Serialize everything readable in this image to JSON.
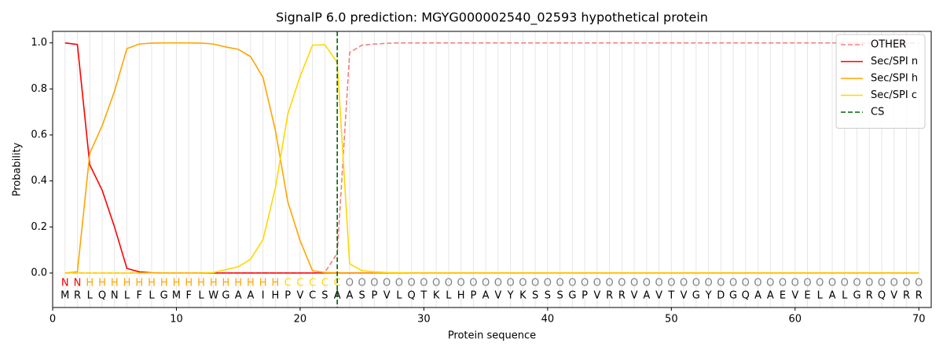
{
  "chart_data": {
    "type": "line",
    "title": "SignalP 6.0 prediction: MGYG000002540_02593 hypothetical protein",
    "xlabel": "Protein sequence",
    "ylabel": "Probability",
    "xlim": [
      0,
      71
    ],
    "ylim": [
      -0.15,
      1.05
    ],
    "xticks": [
      0,
      10,
      20,
      30,
      40,
      50,
      60,
      70
    ],
    "yticks": [
      {
        "value": 0,
        "label": "0.0"
      },
      {
        "value": 0.2,
        "label": "0.2"
      },
      {
        "value": 0.4,
        "label": "0.4"
      },
      {
        "value": 0.6,
        "label": "0.6"
      },
      {
        "value": 0.8,
        "label": "0.8"
      },
      {
        "value": 1,
        "label": "1.0"
      }
    ],
    "grid": true,
    "legend": "upper right",
    "x": [
      1,
      2,
      3,
      4,
      5,
      6,
      7,
      8,
      9,
      10,
      11,
      12,
      13,
      14,
      15,
      16,
      17,
      18,
      19,
      20,
      21,
      22,
      23,
      24,
      25,
      26,
      27,
      28,
      29,
      30,
      31,
      32,
      33,
      34,
      35,
      36,
      37,
      38,
      39,
      40,
      41,
      42,
      43,
      44,
      45,
      46,
      47,
      48,
      49,
      50,
      51,
      52,
      53,
      54,
      55,
      56,
      57,
      58,
      59,
      60,
      61,
      62,
      63,
      64,
      65,
      66,
      67,
      68,
      69,
      70
    ],
    "sequence": [
      "M",
      "R",
      "L",
      "Q",
      "N",
      "L",
      "F",
      "L",
      "G",
      "M",
      "F",
      "L",
      "W",
      "G",
      "A",
      "A",
      "I",
      "H",
      "P",
      "V",
      "C",
      "S",
      "A",
      "A",
      "S",
      "P",
      "V",
      "L",
      "Q",
      "T",
      "K",
      "L",
      "H",
      "P",
      "A",
      "V",
      "Y",
      "K",
      "S",
      "S",
      "S",
      "G",
      "P",
      "V",
      "R",
      "R",
      "V",
      "A",
      "V",
      "T",
      "V",
      "G",
      "Y",
      "D",
      "G",
      "Q",
      "A",
      "A",
      "E",
      "V",
      "E",
      "L",
      "A",
      "L",
      "G",
      "R",
      "Q",
      "V",
      "R",
      "R"
    ],
    "residue_labels": [
      "N",
      "N",
      "H",
      "H",
      "H",
      "H",
      "H",
      "H",
      "H",
      "H",
      "H",
      "H",
      "H",
      "H",
      "H",
      "H",
      "H",
      "H",
      "C",
      "C",
      "C",
      "C",
      "C",
      "O",
      "O",
      "O",
      "O",
      "O",
      "O",
      "O",
      "O",
      "O",
      "O",
      "O",
      "O",
      "O",
      "O",
      "O",
      "O",
      "O",
      "O",
      "O",
      "O",
      "O",
      "O",
      "O",
      "O",
      "O",
      "O",
      "O",
      "O",
      "O",
      "O",
      "O",
      "O",
      "O",
      "O",
      "O",
      "O",
      "O",
      "O",
      "O",
      "O",
      "O",
      "O",
      "O",
      "O",
      "O",
      "O",
      "O"
    ],
    "label_colors": {
      "N": "#ff0000",
      "H": "#ffa500",
      "C": "#ffd700",
      "O": "#808080"
    },
    "series": [
      {
        "name": "OTHER",
        "color": "#f08080",
        "dash": true,
        "values": [
          0,
          0,
          0,
          0,
          0,
          0,
          0,
          0,
          0,
          0,
          0,
          0,
          0,
          0,
          0,
          0,
          0,
          0,
          0,
          0,
          0,
          0.003,
          0.085,
          0.958,
          0.99,
          0.995,
          0.998,
          1,
          1,
          1,
          1,
          1,
          1,
          1,
          1,
          1,
          1,
          1,
          1,
          1,
          1,
          1,
          1,
          1,
          1,
          1,
          1,
          1,
          1,
          1,
          1,
          1,
          1,
          1,
          1,
          1,
          1,
          1,
          1,
          1,
          1,
          1,
          1,
          1,
          1,
          1,
          1,
          1,
          1,
          1
        ]
      },
      {
        "name": "Sec/SPI n",
        "color": "#ff0000",
        "dash": false,
        "values": [
          1.0,
          0.993,
          0.47,
          0.36,
          0.2,
          0.02,
          0.005,
          0.001,
          0,
          0,
          0,
          0,
          0,
          0,
          0,
          0,
          0,
          0,
          0,
          0,
          0,
          0,
          0,
          0,
          0,
          0,
          0,
          0,
          0,
          0,
          0,
          0,
          0,
          0,
          0,
          0,
          0,
          0,
          0,
          0,
          0,
          0,
          0,
          0,
          0,
          0,
          0,
          0,
          0,
          0,
          0,
          0,
          0,
          0,
          0,
          0,
          0,
          0,
          0,
          0,
          0,
          0,
          0,
          0,
          0,
          0,
          0,
          0,
          0,
          0
        ]
      },
      {
        "name": "Sec/SPI h",
        "color": "#ffa500",
        "dash": false,
        "values": [
          0,
          0.005,
          0.52,
          0.64,
          0.79,
          0.975,
          0.995,
          0.999,
          1,
          1,
          1,
          0.999,
          0.995,
          0.982,
          0.972,
          0.94,
          0.85,
          0.62,
          0.31,
          0.14,
          0.01,
          0.002,
          0.001,
          0,
          0,
          0,
          0,
          0,
          0,
          0,
          0,
          0,
          0,
          0,
          0,
          0,
          0,
          0,
          0,
          0,
          0,
          0,
          0,
          0,
          0,
          0,
          0,
          0,
          0,
          0,
          0,
          0,
          0,
          0,
          0,
          0,
          0,
          0,
          0,
          0,
          0,
          0,
          0,
          0,
          0,
          0,
          0,
          0,
          0,
          0
        ]
      },
      {
        "name": "Sec/SPI c",
        "color": "#ffd700",
        "dash": false,
        "values": [
          0,
          0,
          0,
          0,
          0,
          0,
          0,
          0,
          0,
          0,
          0,
          0,
          0.002,
          0.015,
          0.027,
          0.06,
          0.145,
          0.37,
          0.69,
          0.855,
          0.99,
          0.992,
          0.915,
          0.04,
          0.01,
          0.005,
          0.002,
          0.001,
          0,
          0,
          0,
          0,
          0,
          0,
          0,
          0,
          0,
          0,
          0,
          0,
          0,
          0,
          0,
          0,
          0,
          0,
          0,
          0,
          0,
          0,
          0,
          0,
          0,
          0,
          0,
          0,
          0,
          0,
          0,
          0,
          0,
          0,
          0,
          0,
          0,
          0,
          0,
          0,
          0,
          0
        ]
      }
    ],
    "cleavage_site": {
      "name": "CS",
      "x": 23,
      "color": "#006400"
    }
  }
}
